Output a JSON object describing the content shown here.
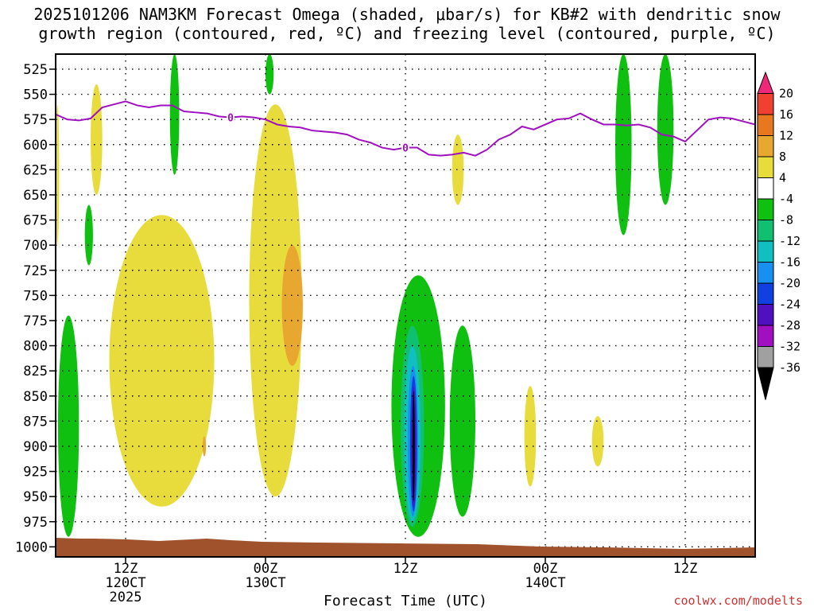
{
  "title_line1": "2025101206 NAM3KM Forecast Omega (shaded, μbar/s) for KB#2 with dendritic snow",
  "title_line2": "growth region (contoured, red, ºC) and freezing level (contoured, purple, ºC)",
  "credit": "coolwx.com/modelts",
  "chart_data": {
    "type": "time-height contour",
    "title": "2025101206 NAM3KM Forecast Omega (shaded, μbar/s) for KB#2 with dendritic snow growth region (contoured, red, ºC) and freezing level (contoured, purple, ºC)",
    "xlabel": "Forecast Time (UTC)",
    "ylabel": "Pressure (hPa)",
    "y_ticks": [
      525,
      550,
      575,
      600,
      625,
      650,
      675,
      700,
      725,
      750,
      775,
      800,
      825,
      850,
      875,
      900,
      925,
      950,
      975,
      1000
    ],
    "x_ticks": [
      {
        "hour": 6,
        "line1": "12Z",
        "line2": "120CT",
        "line3": "2025"
      },
      {
        "hour": 18,
        "line1": "00Z",
        "line2": "130CT",
        "line3": ""
      },
      {
        "hour": 30,
        "line1": "12Z",
        "line2": "",
        "line3": ""
      },
      {
        "hour": 42,
        "line1": "00Z",
        "line2": "140CT",
        "line3": ""
      },
      {
        "hour": 54,
        "line1": "12Z",
        "line2": "",
        "line3": ""
      }
    ],
    "xlim": [
      0,
      60
    ],
    "ylim": [
      1010,
      510
    ],
    "colorbar": {
      "labels": [
        "20",
        "16",
        "12",
        "8",
        "4",
        "-4",
        "-8",
        "-12",
        "-16",
        "-20",
        "-24",
        "-28",
        "-32",
        "-36"
      ],
      "colors": [
        "#f0287a",
        "#f04030",
        "#e87820",
        "#e8a830",
        "#e8dc3c",
        "#ffffff",
        "#10c010",
        "#10c070",
        "#10c0c0",
        "#1890f0",
        "#1040e0",
        "#5010c0",
        "#a010c0",
        "#a0a0a0",
        "#000000"
      ]
    },
    "freezing_level": {
      "label": "0",
      "hours": [
        0,
        1,
        2,
        3,
        4,
        5,
        6,
        7,
        8,
        9,
        10,
        11,
        12,
        13,
        14,
        15,
        16,
        17,
        18,
        19,
        20,
        21,
        22,
        23,
        24,
        25,
        26,
        27,
        28,
        29,
        30,
        31,
        32,
        33,
        34,
        35,
        36,
        37,
        38,
        39,
        40,
        41,
        42,
        43,
        44,
        45,
        46,
        47,
        48,
        49,
        50,
        51,
        52,
        53,
        54,
        55,
        56,
        57,
        58,
        59,
        60
      ],
      "pressure": [
        570,
        575,
        576,
        574,
        563,
        560,
        557,
        561,
        563,
        561,
        561,
        567,
        568,
        569,
        572,
        573,
        572,
        573,
        575,
        580,
        582,
        583,
        586,
        587,
        588,
        590,
        595,
        598,
        603,
        605,
        603,
        603,
        610,
        611,
        610,
        608,
        611,
        605,
        595,
        590,
        582,
        585,
        580,
        575,
        574,
        569,
        575,
        580,
        580,
        581,
        580,
        583,
        590,
        592,
        597,
        586,
        575,
        573,
        574,
        577,
        580
      ]
    },
    "omega_regions": [
      {
        "color": "#e8dc3c",
        "level": 4,
        "hours": [
          0.0,
          0.3
        ],
        "pressure": [
          560,
          700
        ]
      },
      {
        "color": "#e8dc3c",
        "level": 4,
        "hours": [
          3.0,
          4.0
        ],
        "pressure": [
          540,
          650
        ]
      },
      {
        "color": "#e8dc3c",
        "level": 4,
        "hours": [
          4.6,
          13.6
        ],
        "pressure": [
          670,
          960
        ]
      },
      {
        "color": "#e8a830",
        "level": 8,
        "hours": [
          12.6,
          12.9
        ],
        "pressure": [
          890,
          910
        ]
      },
      {
        "color": "#e8dc3c",
        "level": 4,
        "hours": [
          16.6,
          21.1
        ],
        "pressure": [
          560,
          950
        ]
      },
      {
        "color": "#e8a830",
        "level": 8,
        "hours": [
          19.4,
          21.2
        ],
        "pressure": [
          700,
          820
        ]
      },
      {
        "color": "#e8dc3c",
        "level": 4,
        "hours": [
          34.0,
          35.0
        ],
        "pressure": [
          590,
          660
        ]
      },
      {
        "color": "#e8dc3c",
        "level": 4,
        "hours": [
          40.2,
          41.2
        ],
        "pressure": [
          840,
          940
        ]
      },
      {
        "color": "#e8dc3c",
        "level": 4,
        "hours": [
          46.0,
          47.0
        ],
        "pressure": [
          870,
          920
        ]
      },
      {
        "color": "#10c010",
        "level": -8,
        "hours": [
          0.2,
          2.0
        ],
        "pressure": [
          770,
          990
        ]
      },
      {
        "color": "#10c010",
        "level": -8,
        "hours": [
          2.5,
          3.2
        ],
        "pressure": [
          660,
          720
        ]
      },
      {
        "color": "#10c010",
        "level": -8,
        "hours": [
          9.8,
          10.6
        ],
        "pressure": [
          510,
          630
        ]
      },
      {
        "color": "#10c010",
        "level": -8,
        "hours": [
          18.0,
          18.7
        ],
        "pressure": [
          510,
          550
        ]
      },
      {
        "color": "#10c010",
        "level": -8,
        "hours": [
          28.8,
          33.4
        ],
        "pressure": [
          730,
          990
        ]
      },
      {
        "color": "#10c010",
        "level": -8,
        "hours": [
          33.8,
          36.0
        ],
        "pressure": [
          780,
          970
        ]
      },
      {
        "color": "#10c010",
        "level": -8,
        "hours": [
          48.0,
          49.4
        ],
        "pressure": [
          510,
          690
        ]
      },
      {
        "color": "#10c010",
        "level": -8,
        "hours": [
          51.6,
          53.0
        ],
        "pressure": [
          510,
          660
        ]
      },
      {
        "color": "#10c070",
        "level": -12,
        "hours": [
          29.6,
          31.6
        ],
        "pressure": [
          780,
          980
        ]
      },
      {
        "color": "#10c0c0",
        "level": -16,
        "hours": [
          29.9,
          31.3
        ],
        "pressure": [
          800,
          975
        ]
      },
      {
        "color": "#1890f0",
        "level": -20,
        "hours": [
          30.2,
          31.1
        ],
        "pressure": [
          820,
          970
        ]
      },
      {
        "color": "#1040e0",
        "level": -24,
        "hours": [
          30.4,
          31.0
        ],
        "pressure": [
          830,
          965
        ]
      },
      {
        "color": "#5010c0",
        "level": -28,
        "hours": [
          30.5,
          30.9
        ],
        "pressure": [
          840,
          960
        ]
      },
      {
        "color": "#000000",
        "level": -36,
        "hours": [
          30.6,
          30.8
        ],
        "pressure": [
          845,
          955
        ]
      }
    ]
  }
}
